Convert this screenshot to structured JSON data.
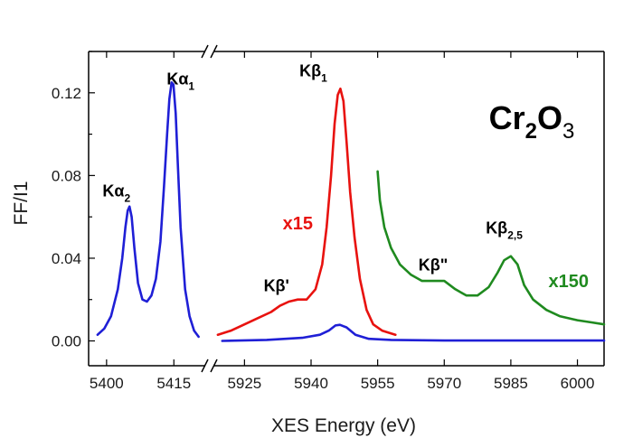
{
  "chart_data": {
    "type": "line",
    "title": "",
    "xlabel": "XES Energy (eV)",
    "ylabel": "FF/I1",
    "ylim": [
      -0.012,
      0.14
    ],
    "y_ticks": [
      "0.00",
      "0.04",
      "0.08",
      "0.12"
    ],
    "y_tick_values": [
      0.0,
      0.04,
      0.08,
      0.12
    ],
    "x_axis_broken": true,
    "x_segments": [
      {
        "xlim": [
          5396,
          5422
        ],
        "ticks": [
          5400,
          5415
        ],
        "tick_labels": [
          "5400",
          "5415"
        ]
      },
      {
        "xlim": [
          5918,
          6006
        ],
        "ticks": [
          5925,
          5940,
          5955,
          5970,
          5985,
          6000
        ],
        "tick_labels": [
          "5925",
          "5940",
          "5955",
          "5970",
          "5985",
          "6000"
        ]
      }
    ],
    "grid": false,
    "series": [
      {
        "name": "",
        "color": "#1f1fd6",
        "segment": 0,
        "x": [
          5398,
          5399.5,
          5401,
          5402.5,
          5403.5,
          5404.2,
          5404.7,
          5405.1,
          5405.6,
          5406.2,
          5407,
          5408,
          5409,
          5410,
          5411,
          5412,
          5412.8,
          5413.5,
          5414,
          5414.5,
          5414.9,
          5415.4,
          5415.9,
          5416.5,
          5417.5,
          5418.5,
          5419.5,
          5420.5
        ],
        "y": [
          0.003,
          0.006,
          0.012,
          0.025,
          0.04,
          0.055,
          0.063,
          0.065,
          0.06,
          0.045,
          0.028,
          0.02,
          0.019,
          0.022,
          0.03,
          0.048,
          0.075,
          0.1,
          0.117,
          0.125,
          0.124,
          0.11,
          0.085,
          0.055,
          0.025,
          0.012,
          0.005,
          0.002
        ]
      },
      {
        "name": "",
        "color": "#1f1fd6",
        "segment": 1,
        "x": [
          5920,
          5930,
          5938,
          5942,
          5944,
          5945.5,
          5946.5,
          5948,
          5950,
          5953,
          5958,
          5970,
          5985,
          6000,
          6006
        ],
        "y": [
          0.0,
          0.0005,
          0.0015,
          0.003,
          0.005,
          0.0075,
          0.0078,
          0.0065,
          0.003,
          0.001,
          0.0005,
          0.0002,
          0.0002,
          0.0002,
          0.0002
        ]
      },
      {
        "name": "",
        "color": "#e8120f",
        "segment": 1,
        "x": [
          5919,
          5922,
          5925,
          5928,
          5931,
          5933,
          5935,
          5937,
          5939,
          5941,
          5942.5,
          5943.5,
          5944.5,
          5945.3,
          5946,
          5946.6,
          5947.3,
          5948,
          5948.8,
          5949.8,
          5951,
          5952.5,
          5954,
          5956,
          5959
        ],
        "y": [
          0.003,
          0.005,
          0.008,
          0.011,
          0.014,
          0.017,
          0.019,
          0.02,
          0.02,
          0.025,
          0.037,
          0.055,
          0.08,
          0.105,
          0.119,
          0.122,
          0.116,
          0.096,
          0.072,
          0.05,
          0.03,
          0.015,
          0.008,
          0.005,
          0.003
        ]
      },
      {
        "name": "",
        "color": "#1f8a1f",
        "segment": 1,
        "x": [
          5955,
          5955.5,
          5956.5,
          5958,
          5960,
          5962.5,
          5965,
          5967.5,
          5970,
          5972.5,
          5975,
          5977.5,
          5980,
          5982,
          5983.5,
          5985,
          5986.5,
          5988,
          5990,
          5993,
          5996,
          6000,
          6003,
          6006
        ],
        "y": [
          0.082,
          0.068,
          0.055,
          0.045,
          0.037,
          0.032,
          0.029,
          0.029,
          0.029,
          0.025,
          0.022,
          0.022,
          0.026,
          0.033,
          0.039,
          0.041,
          0.037,
          0.027,
          0.02,
          0.015,
          0.012,
          0.01,
          0.009,
          0.008
        ]
      }
    ],
    "annotations": [
      {
        "text": "Kα",
        "sub": "2",
        "x": 5402.2,
        "y": 0.07,
        "color": "#000000"
      },
      {
        "text": "Kα",
        "sub": "1",
        "x": 5416.5,
        "y": 0.124,
        "color": "#000000"
      },
      {
        "text": "Kβ",
        "sub": "1",
        "x": 5940.5,
        "y": 0.128,
        "color": "#000000"
      },
      {
        "text": "Kβ'",
        "sub": "",
        "x": 5932.2,
        "y": 0.024,
        "color": "#000000"
      },
      {
        "text": "Kβ\"",
        "sub": "",
        "x": 5967.5,
        "y": 0.034,
        "color": "#000000"
      },
      {
        "text": "Kβ",
        "sub": "2,5",
        "x": 5983.5,
        "y": 0.052,
        "color": "#000000"
      },
      {
        "text": "x15",
        "sub": "",
        "x": 5937,
        "y": 0.054,
        "color": "#e8120f"
      },
      {
        "text": "x150",
        "sub": "",
        "x": 5998,
        "y": 0.026,
        "color": "#1f8a1f"
      }
    ],
    "inset_label": {
      "text": "Cr",
      "sub1": "2",
      "mid": "O",
      "sub2": "3"
    }
  }
}
